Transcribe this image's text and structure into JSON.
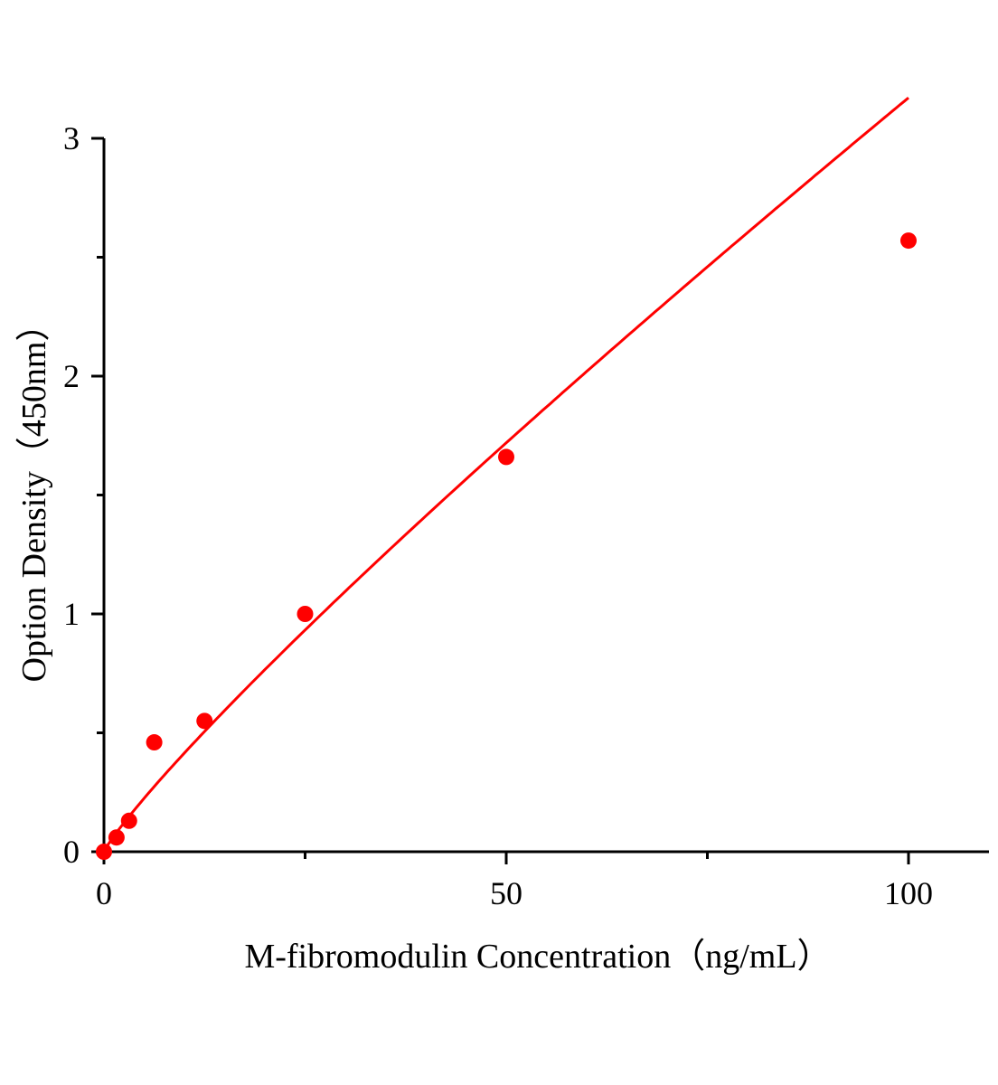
{
  "chart_data": {
    "type": "scatter",
    "title": "",
    "xlabel": "M-fibromodulin Concentration（ng/mL）",
    "ylabel": "Option Density（450nm）",
    "xlim": [
      0,
      110
    ],
    "ylim": [
      0,
      3
    ],
    "x_ticks": [
      0,
      50,
      100
    ],
    "x_minor_ticks": [
      25,
      75
    ],
    "y_ticks": [
      0,
      1,
      2,
      3
    ],
    "y_minor_ticks": [
      0.5,
      1.5,
      2.5
    ],
    "grid": false,
    "color": "#ff0000",
    "points": [
      {
        "x": 0,
        "y": 0.0
      },
      {
        "x": 1.56,
        "y": 0.06
      },
      {
        "x": 3.12,
        "y": 0.13
      },
      {
        "x": 6.25,
        "y": 0.46
      },
      {
        "x": 12.5,
        "y": 0.55
      },
      {
        "x": 25,
        "y": 1.0
      },
      {
        "x": 50,
        "y": 1.66
      },
      {
        "x": 100,
        "y": 2.57
      }
    ],
    "fit_line": true
  }
}
